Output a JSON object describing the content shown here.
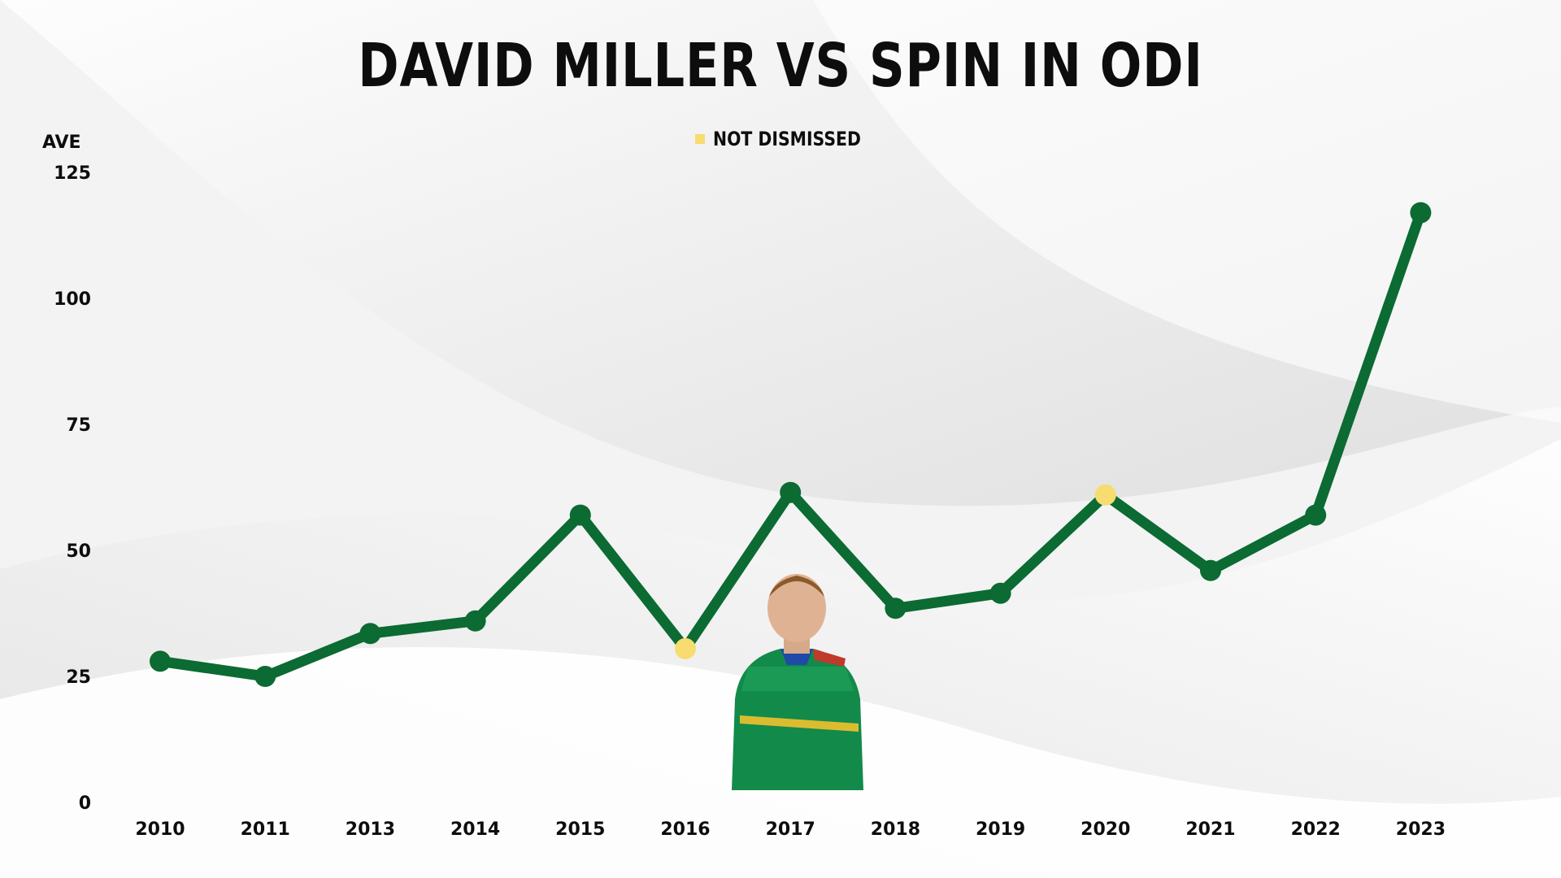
{
  "title": "DAVID MILLER VS SPIN IN ODI",
  "legend": {
    "label": "NOT DISMISSED",
    "color": "#f7dc6f"
  },
  "chart_data": {
    "type": "line",
    "title": "DAVID MILLER VS SPIN IN ODI",
    "ylabel": "AVE",
    "xlabel": "",
    "ylim": [
      0,
      125
    ],
    "yticks": [
      0,
      25,
      50,
      75,
      100,
      125
    ],
    "grid": false,
    "legend_position": "top-center",
    "line_color": "#0b6b32",
    "categories": [
      "2010",
      "2011",
      "2013",
      "2014",
      "2015",
      "2016",
      "2017",
      "2018",
      "2019",
      "2020",
      "2021",
      "2022",
      "2023"
    ],
    "series": [
      {
        "values": [
          28,
          25,
          33.5,
          36,
          57,
          30.5,
          61.5,
          38.5,
          41.5,
          61,
          46,
          57,
          117
        ],
        "not_dismissed": [
          false,
          false,
          false,
          false,
          false,
          true,
          false,
          false,
          false,
          true,
          false,
          false,
          false
        ]
      }
    ]
  }
}
